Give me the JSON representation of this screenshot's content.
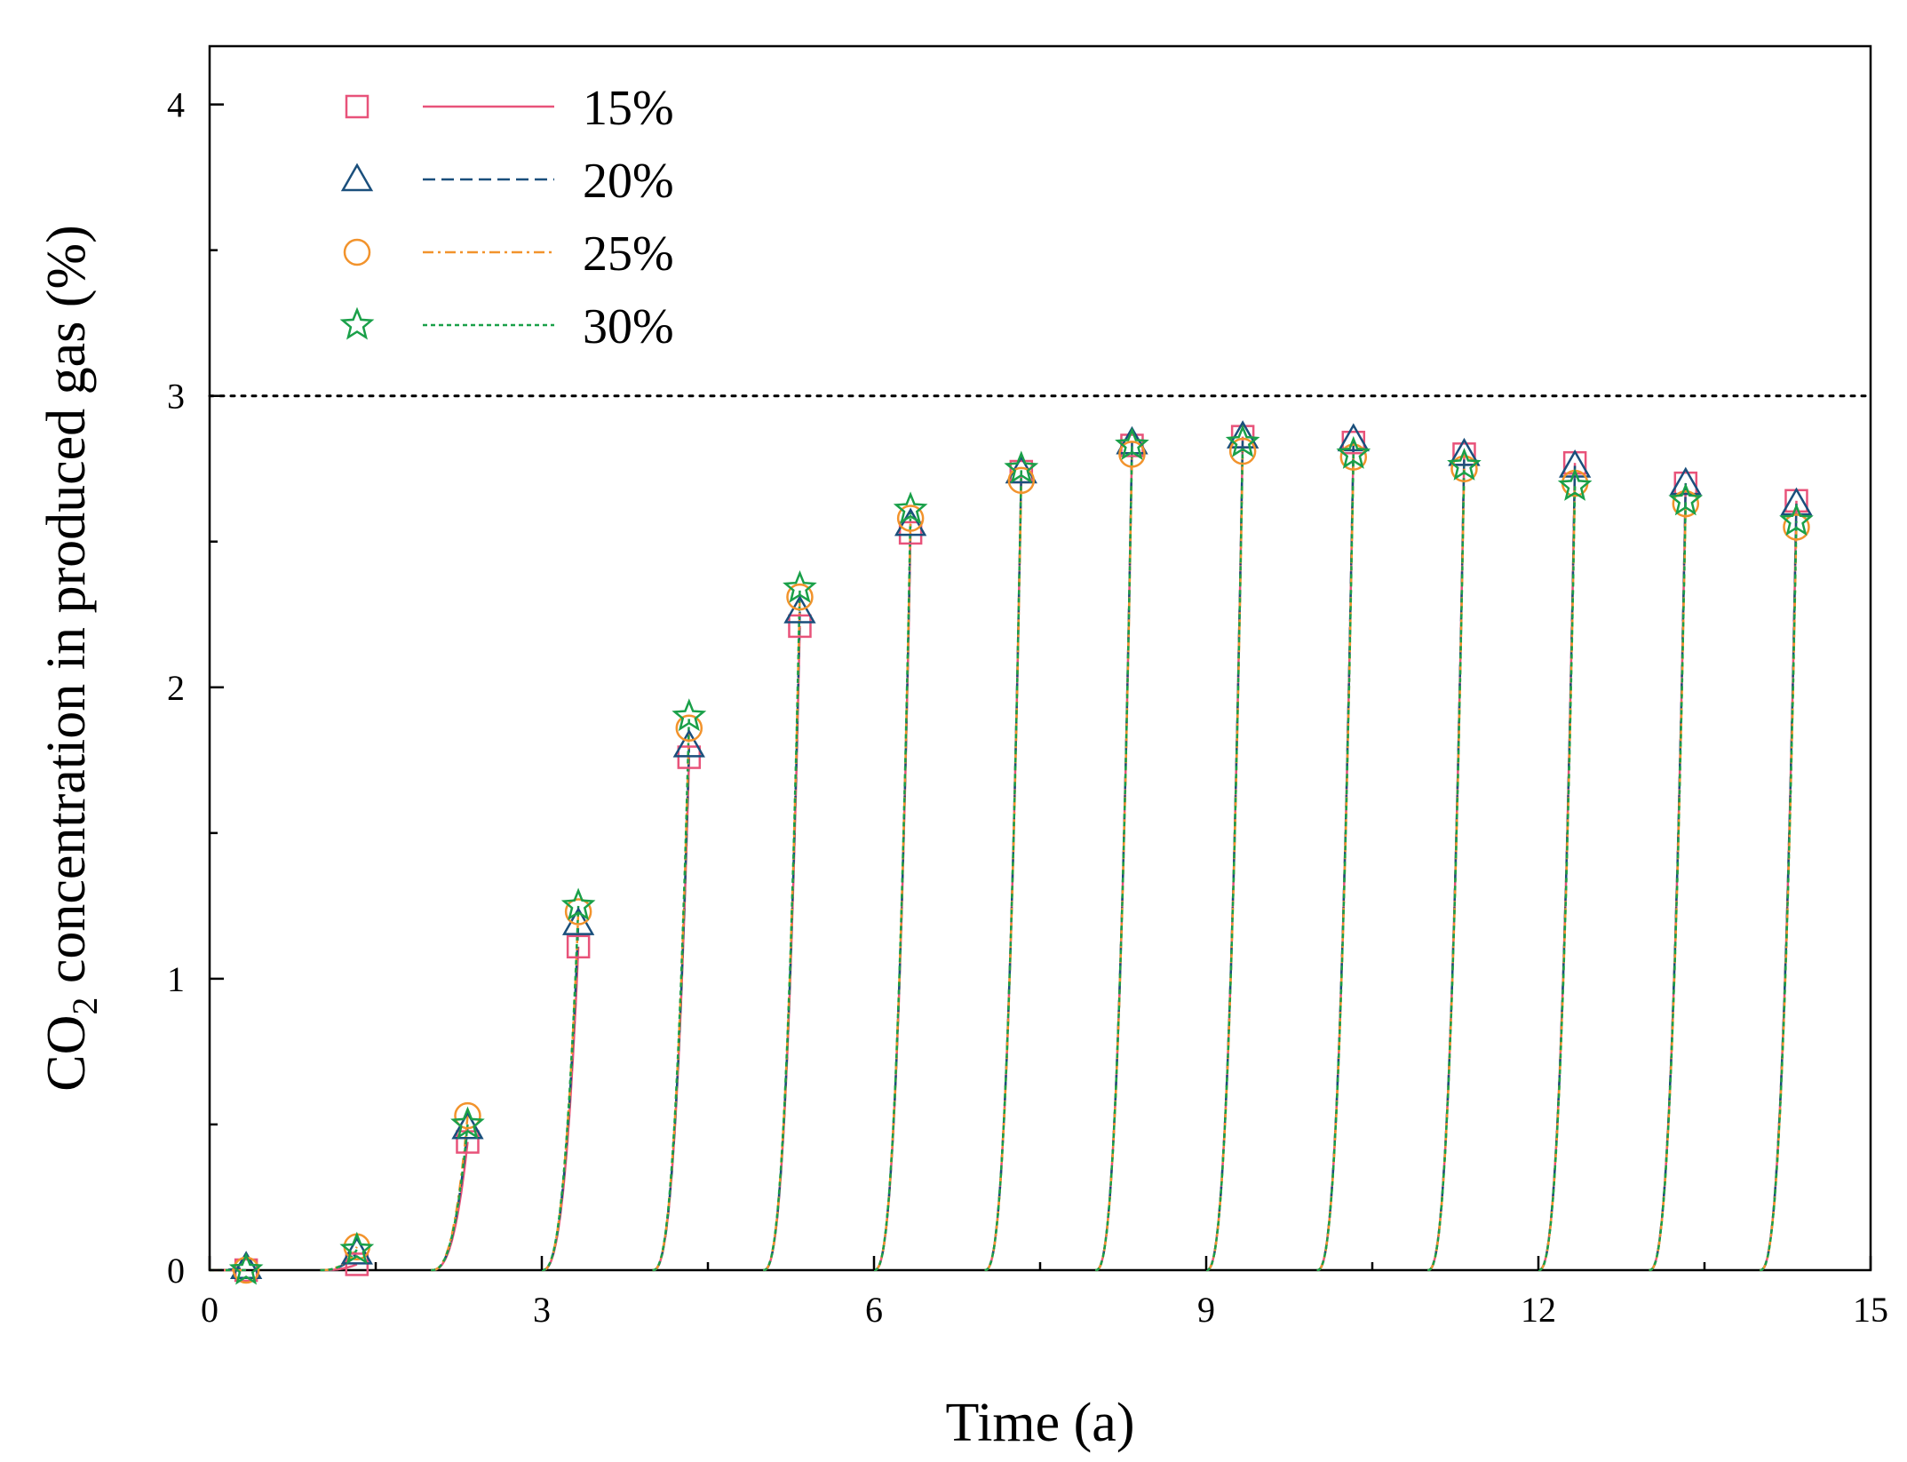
{
  "chart_data": {
    "type": "line",
    "xlabel": "Time (a)",
    "ylabel_parts": [
      "CO",
      "2",
      " concentration in produced gas (%)"
    ],
    "xlim": [
      0,
      15
    ],
    "ylim": [
      0,
      4.2
    ],
    "xticks": [
      0,
      3,
      6,
      9,
      12,
      15
    ],
    "xticks_minor": [
      1.5,
      4.5,
      7.5,
      10.5,
      13.5
    ],
    "yticks": [
      0,
      1,
      2,
      3,
      4
    ],
    "yticks_minor": [
      0.5,
      1.5,
      2.5,
      3.5
    ],
    "reference_line": {
      "y": 3,
      "style": "dotted",
      "color": "#000000"
    },
    "grid": false,
    "legend_position": "top-left",
    "cycle_start_offset": 0.33,
    "series": [
      {
        "name": "15%",
        "marker": "square",
        "color": "#e8537a",
        "dash": "solid",
        "x": [
          0.33,
          1.33,
          2.33,
          3.33,
          4.33,
          5.33,
          6.33,
          7.33,
          8.33,
          9.33,
          10.33,
          11.33,
          12.33,
          13.33,
          14.33
        ],
        "y": [
          0.0,
          0.02,
          0.44,
          1.11,
          1.76,
          2.21,
          2.53,
          2.74,
          2.83,
          2.86,
          2.84,
          2.8,
          2.77,
          2.7,
          2.64
        ]
      },
      {
        "name": "20%",
        "marker": "triangle",
        "color": "#1a4f7c",
        "dash": "dashed",
        "x": [
          0.33,
          1.33,
          2.33,
          3.33,
          4.33,
          5.33,
          6.33,
          7.33,
          8.33,
          9.33,
          10.33,
          11.33,
          12.33,
          13.33,
          14.33
        ],
        "y": [
          0.01,
          0.06,
          0.49,
          1.19,
          1.8,
          2.26,
          2.56,
          2.74,
          2.84,
          2.86,
          2.85,
          2.8,
          2.76,
          2.7,
          2.63
        ]
      },
      {
        "name": "25%",
        "marker": "circle",
        "color": "#f2932c",
        "dash": "dashdot",
        "x": [
          0.33,
          1.33,
          2.33,
          3.33,
          4.33,
          5.33,
          6.33,
          7.33,
          8.33,
          9.33,
          10.33,
          11.33,
          12.33,
          13.33,
          14.33
        ],
        "y": [
          0.0,
          0.08,
          0.53,
          1.23,
          1.86,
          2.31,
          2.58,
          2.71,
          2.8,
          2.81,
          2.79,
          2.75,
          2.7,
          2.63,
          2.55
        ]
      },
      {
        "name": "30%",
        "marker": "star",
        "color": "#1aa049",
        "dash": "dotted",
        "x": [
          0.33,
          1.33,
          2.33,
          3.33,
          4.33,
          5.33,
          6.33,
          7.33,
          8.33,
          9.33,
          10.33,
          11.33,
          12.33,
          13.33,
          14.33
        ],
        "y": [
          0.0,
          0.07,
          0.5,
          1.25,
          1.9,
          2.34,
          2.61,
          2.75,
          2.83,
          2.84,
          2.8,
          2.76,
          2.69,
          2.64,
          2.57
        ]
      }
    ]
  }
}
